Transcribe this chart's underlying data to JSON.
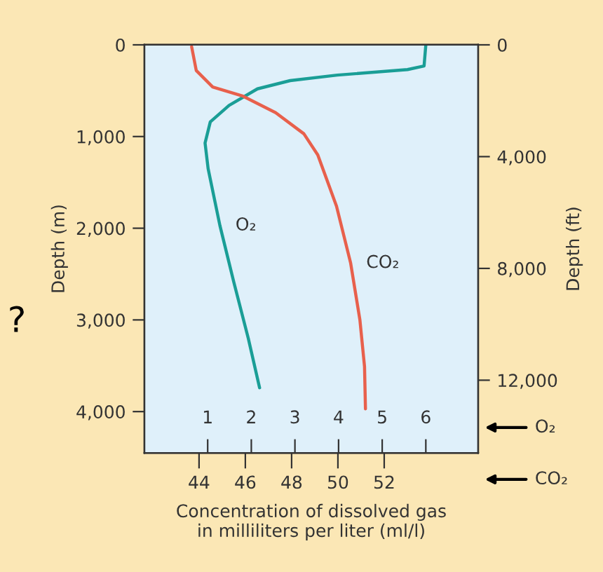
{
  "chart_data": {
    "type": "line",
    "xlabel": "Concentration of dissolved gas\nin milliliters per liter (ml/l)",
    "ylabel": "Depth (m)",
    "y2label": "Depth (ft)",
    "annotations": [
      "O₂",
      "CO₂",
      "?"
    ],
    "xlim": [
      -0.45,
      7.2
    ],
    "xticks": [
      1,
      2,
      3,
      4,
      5,
      6
    ],
    "x2lim": [
      41.64,
      56.06
    ],
    "x2ticks": [
      44,
      46,
      48,
      50,
      52
    ],
    "ylim": [
      4450,
      0
    ],
    "yticks": [
      0,
      {
        "value": 1000,
        "label": "1,000"
      },
      {
        "value": 2000,
        "label": "2,000"
      },
      {
        "value": 3000,
        "label": "3,000"
      },
      {
        "value": 4000,
        "label": "4,000"
      }
    ],
    "y2lim": [
      14600,
      0
    ],
    "y2ticks": [
      0,
      {
        "value": 4000,
        "label": "4,000"
      },
      {
        "value": 8000,
        "label": "8,000"
      },
      {
        "value": 12000,
        "label": "12,000"
      }
    ],
    "grid": false,
    "legend": false,
    "series": [
      {
        "name": "O₂",
        "color": "#1a9e96",
        "x": [
          6.0,
          5.96,
          5.58,
          3.97,
          2.89,
          2.14,
          1.49,
          1.06,
          0.94,
          1.01,
          1.28,
          1.6,
          1.93,
          2.19
        ],
        "values": [
          0,
          230,
          270,
          330,
          390,
          480,
          660,
          840,
          1070,
          1350,
          1970,
          2590,
          3200,
          3740
        ]
      },
      {
        "name": "CO₂",
        "color": "#e8604c",
        "axis": "x2",
        "x": [
          43.68,
          43.88,
          44.59,
          45.9,
          47.31,
          48.53,
          49.13,
          49.94,
          50.55,
          50.95,
          51.15,
          51.19
        ],
        "values": [
          20,
          280,
          460,
          560,
          740,
          970,
          1200,
          1760,
          2380,
          3000,
          3510,
          3970
        ]
      }
    ]
  }
}
